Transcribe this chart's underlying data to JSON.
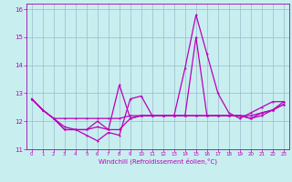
{
  "xlabel": "Windchill (Refroidissement éolien,°C)",
  "x": [
    0,
    1,
    2,
    3,
    4,
    5,
    6,
    7,
    8,
    9,
    10,
    11,
    12,
    13,
    14,
    15,
    16,
    17,
    18,
    19,
    20,
    21,
    22,
    23
  ],
  "line1": [
    12.8,
    12.4,
    12.1,
    11.7,
    11.7,
    11.5,
    11.3,
    11.6,
    11.5,
    12.8,
    12.9,
    12.2,
    12.2,
    12.2,
    13.9,
    15.8,
    14.4,
    13.0,
    12.3,
    12.1,
    12.3,
    12.5,
    12.7,
    12.7
  ],
  "line2": [
    12.8,
    12.4,
    12.1,
    11.8,
    11.7,
    11.7,
    12.0,
    11.7,
    13.3,
    12.1,
    12.2,
    12.2,
    12.2,
    12.2,
    12.2,
    15.0,
    12.2,
    12.2,
    12.2,
    12.2,
    12.2,
    12.3,
    12.4,
    12.7
  ],
  "line3": [
    12.8,
    12.4,
    12.1,
    12.1,
    12.1,
    12.1,
    12.1,
    12.1,
    12.1,
    12.2,
    12.2,
    12.2,
    12.2,
    12.2,
    12.2,
    12.2,
    12.2,
    12.2,
    12.2,
    12.2,
    12.1,
    12.3,
    12.4,
    12.6
  ],
  "line4": [
    12.8,
    12.4,
    12.1,
    11.7,
    11.7,
    11.7,
    11.8,
    11.7,
    11.7,
    12.1,
    12.2,
    12.2,
    12.2,
    12.2,
    12.2,
    12.2,
    12.2,
    12.2,
    12.2,
    12.2,
    12.1,
    12.2,
    12.4,
    12.6
  ],
  "ylim": [
    11.0,
    16.2
  ],
  "xlim": [
    -0.5,
    23.5
  ],
  "yticks": [
    11,
    12,
    13,
    14,
    15,
    16
  ],
  "xticks": [
    0,
    1,
    2,
    3,
    4,
    5,
    6,
    7,
    8,
    9,
    10,
    11,
    12,
    13,
    14,
    15,
    16,
    17,
    18,
    19,
    20,
    21,
    22,
    23
  ],
  "line_color": "#bb00bb",
  "bg_color": "#c8eef0",
  "grid_color": "#99bbcc",
  "spine_color": "#aa00aa"
}
